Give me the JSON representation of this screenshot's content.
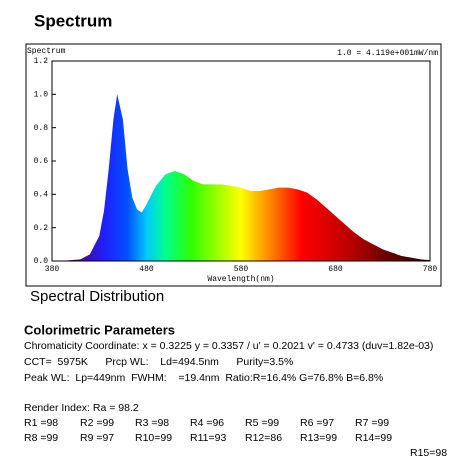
{
  "title": "Spectrum",
  "chart_data": {
    "type": "area",
    "ylabel": "Spectrum",
    "annotation": "1.0 = 4.119e+001mW/nm",
    "xlabel": "Wavelength(nm)",
    "x": [
      380,
      390,
      400,
      410,
      420,
      430,
      435,
      440,
      445,
      449,
      455,
      460,
      465,
      470,
      475,
      480,
      490,
      500,
      510,
      520,
      530,
      540,
      550,
      560,
      570,
      580,
      590,
      600,
      610,
      620,
      630,
      640,
      650,
      660,
      670,
      680,
      690,
      700,
      710,
      720,
      730,
      740,
      750,
      760,
      770,
      780
    ],
    "values": [
      0,
      0,
      0.005,
      0.01,
      0.04,
      0.15,
      0.3,
      0.55,
      0.85,
      1.0,
      0.85,
      0.55,
      0.38,
      0.31,
      0.29,
      0.34,
      0.45,
      0.52,
      0.54,
      0.52,
      0.48,
      0.46,
      0.46,
      0.46,
      0.45,
      0.44,
      0.42,
      0.42,
      0.43,
      0.44,
      0.44,
      0.43,
      0.41,
      0.37,
      0.32,
      0.27,
      0.22,
      0.17,
      0.13,
      0.1,
      0.07,
      0.05,
      0.03,
      0.02,
      0.01,
      0.005
    ],
    "xlim": [
      380,
      780
    ],
    "xticks": [
      380,
      480,
      580,
      680,
      780
    ],
    "ylim": [
      0,
      1.2
    ],
    "yticks": [
      {
        "value": 0,
        "label": "0.0"
      },
      0.2,
      0.4,
      0.6,
      0.8,
      {
        "value": 1,
        "label": "1.0"
      },
      1.2
    ]
  },
  "caption": "Spectral Distribution",
  "colorimetric": {
    "title": "Colorimetric Parameters",
    "lines": [
      "Chromaticity Coordinate: x = 0.3225 y = 0.3357 / u' = 0.2021 v' = 0.4733 (duv=1.82e-03)",
      "CCT=  5975K      Prcp WL:    Ld=494.5nm      Purity=3.5%",
      "Peak WL:  Lp=449nm  FWHM:    =19.4nm  Ratio:R=16.4% G=76.8% B=6.8%"
    ]
  },
  "render_index": {
    "title": "Render Index: Ra = 98.2",
    "items": [
      "R1 =98",
      "R2 =99",
      "R3 =98",
      "R4 =96",
      "R5 =99",
      "R6 =97",
      "R7 =99",
      "R8 =99",
      "R9 =97",
      "R10=99",
      "R11=93",
      "R12=86",
      "R13=99",
      "R14=99",
      "R15=98"
    ]
  }
}
